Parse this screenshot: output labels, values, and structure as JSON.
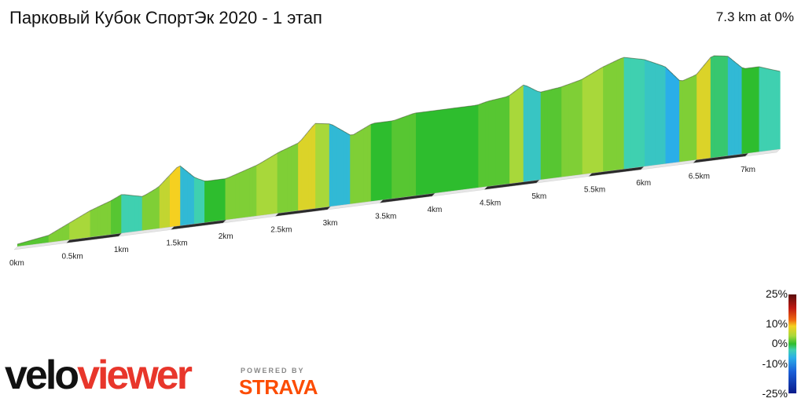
{
  "header": {
    "title": "Парковый Кубок СпортЭк 2020 - 1 этап",
    "summary": "7.3 km at 0%"
  },
  "legend": {
    "ticks": [
      "25%",
      "10%",
      "0%",
      "-10%",
      "-25%"
    ]
  },
  "branding": {
    "logo_part1": "velo",
    "logo_part2": "viewer",
    "powered_by": "POWERED BY",
    "partner": "STRAVA",
    "colors": {
      "logo_accent": "#e8362b",
      "strava_orange": "#fc4c02"
    }
  },
  "chart_data": {
    "type": "area",
    "style": "3d elevation profile coloured by gradient",
    "distance_km": 7.3,
    "avg_gradient_pct": 0,
    "x_unit": "km",
    "tick_labels": [
      "0km",
      "0.5km",
      "1km",
      "1.5km",
      "2km",
      "2.5km",
      "3km",
      "3.5km",
      "4km",
      "4.5km",
      "5km",
      "5.5km",
      "6km",
      "6.5km",
      "7km"
    ],
    "tick_km": [
      0,
      0.5,
      1,
      1.5,
      2,
      2.5,
      3,
      3.5,
      4,
      4.5,
      5,
      5.5,
      6,
      6.5,
      7
    ],
    "x": [
      0,
      0.3,
      0.5,
      0.7,
      0.9,
      1.0,
      1.2,
      1.35,
      1.45,
      1.55,
      1.7,
      1.8,
      2.0,
      2.3,
      2.5,
      2.7,
      2.85,
      3.0,
      3.2,
      3.4,
      3.6,
      3.8,
      4.0,
      4.2,
      4.4,
      4.5,
      4.7,
      4.85,
      5.0,
      5.2,
      5.4,
      5.6,
      5.8,
      6.0,
      6.2,
      6.35,
      6.5,
      6.65,
      6.8,
      6.95,
      7.1,
      7.3
    ],
    "relative_height": [
      0,
      2,
      6,
      10,
      13,
      15,
      13,
      16,
      20,
      24,
      18,
      16,
      16,
      20,
      24,
      27,
      34,
      33,
      27,
      31,
      31,
      33,
      33,
      33,
      33,
      34,
      35,
      39,
      35,
      36,
      38,
      42,
      45,
      43,
      39,
      32,
      34,
      41,
      40,
      34,
      34,
      31
    ],
    "gradient_pct": [
      1,
      2,
      3,
      2,
      1,
      -2,
      2,
      4,
      6,
      -4,
      -2,
      0,
      2,
      3,
      2,
      5,
      3,
      -4,
      2,
      0,
      1,
      0,
      0,
      0,
      1,
      1,
      3,
      -3,
      1,
      2,
      3,
      2,
      -2,
      -3,
      -5,
      2,
      5,
      -1,
      -4,
      0,
      -2
    ],
    "gradient_scale_pct": [
      -25,
      25
    ]
  }
}
